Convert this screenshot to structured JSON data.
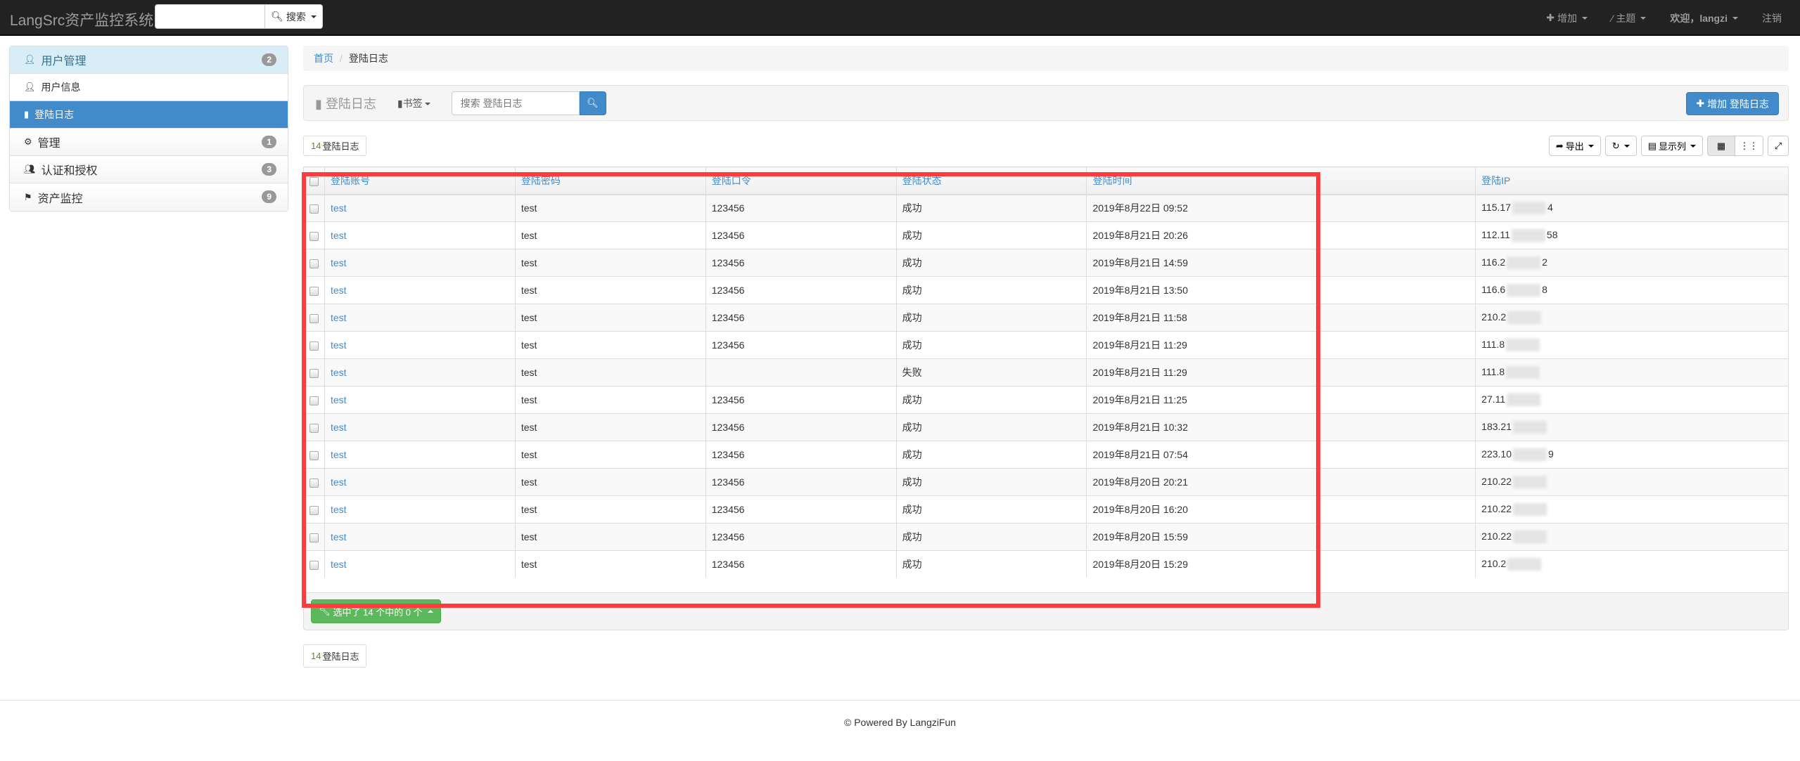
{
  "navbar": {
    "brand": "LangSrc资产监控系统",
    "search_label": "搜索",
    "add_label": "增加",
    "theme_label": "主题",
    "welcome_label": "欢迎，langzi",
    "logout_label": "注销"
  },
  "sidebar": {
    "items": [
      {
        "label": "用户管理",
        "badge": "2",
        "icon": "user-icon",
        "type": "head"
      },
      {
        "label": "用户信息",
        "icon": "user-icon",
        "type": "sub"
      },
      {
        "label": "登陆日志",
        "icon": "book-icon",
        "type": "active"
      },
      {
        "label": "管理",
        "badge": "1",
        "icon": "gear-icon",
        "type": "normal"
      },
      {
        "label": "认证和授权",
        "badge": "3",
        "icon": "users-icon",
        "type": "normal"
      },
      {
        "label": "资产监控",
        "badge": "9",
        "icon": "flag-icon",
        "type": "normal"
      }
    ]
  },
  "breadcrumb": {
    "home": "首页",
    "current": "登陆日志"
  },
  "toolbar": {
    "title": "登陆日志",
    "bookmark_label": "书签",
    "search_placeholder": "搜索 登陆日志",
    "add_label": "增加 登陆日志"
  },
  "count": {
    "number": "14",
    "label": "登陆日志"
  },
  "table_tools": {
    "export_label": "导出",
    "columns_label": "显示列"
  },
  "table": {
    "headers": [
      "登陆账号",
      "登陆密码",
      "登陆口令",
      "登陆状态",
      "登陆时间",
      "登陆IP"
    ],
    "rows": [
      {
        "account": "test",
        "password": "test",
        "token": "123456",
        "status": "成功",
        "time": "2019年8月22日 09:52",
        "ip_prefix": "115.17",
        "ip_suffix": "4"
      },
      {
        "account": "test",
        "password": "test",
        "token": "123456",
        "status": "成功",
        "time": "2019年8月21日 20:26",
        "ip_prefix": "112.11",
        "ip_suffix": "58"
      },
      {
        "account": "test",
        "password": "test",
        "token": "123456",
        "status": "成功",
        "time": "2019年8月21日 14:59",
        "ip_prefix": "116.2",
        "ip_suffix": "2"
      },
      {
        "account": "test",
        "password": "test",
        "token": "123456",
        "status": "成功",
        "time": "2019年8月21日 13:50",
        "ip_prefix": "116.6",
        "ip_suffix": "8"
      },
      {
        "account": "test",
        "password": "test",
        "token": "123456",
        "status": "成功",
        "time": "2019年8月21日 11:58",
        "ip_prefix": "210.2",
        "ip_suffix": ""
      },
      {
        "account": "test",
        "password": "test",
        "token": "123456",
        "status": "成功",
        "time": "2019年8月21日 11:29",
        "ip_prefix": "111.8",
        "ip_suffix": ""
      },
      {
        "account": "test",
        "password": "test",
        "token": "",
        "status": "失败",
        "time": "2019年8月21日 11:29",
        "ip_prefix": "111.8",
        "ip_suffix": ""
      },
      {
        "account": "test",
        "password": "test",
        "token": "123456",
        "status": "成功",
        "time": "2019年8月21日 11:25",
        "ip_prefix": "27.11",
        "ip_suffix": ""
      },
      {
        "account": "test",
        "password": "test",
        "token": "123456",
        "status": "成功",
        "time": "2019年8月21日 10:32",
        "ip_prefix": "183.21",
        "ip_suffix": ""
      },
      {
        "account": "test",
        "password": "test",
        "token": "123456",
        "status": "成功",
        "time": "2019年8月21日 07:54",
        "ip_prefix": "223.10",
        "ip_suffix": "9"
      },
      {
        "account": "test",
        "password": "test",
        "token": "123456",
        "status": "成功",
        "time": "2019年8月20日 20:21",
        "ip_prefix": "210.22",
        "ip_suffix": ""
      },
      {
        "account": "test",
        "password": "test",
        "token": "123456",
        "status": "成功",
        "time": "2019年8月20日 16:20",
        "ip_prefix": "210.22",
        "ip_suffix": ""
      },
      {
        "account": "test",
        "password": "test",
        "token": "123456",
        "status": "成功",
        "time": "2019年8月20日 15:59",
        "ip_prefix": "210.22",
        "ip_suffix": ""
      },
      {
        "account": "test",
        "password": "test",
        "token": "123456",
        "status": "成功",
        "time": "2019年8月20日 15:29",
        "ip_prefix": "210.2",
        "ip_suffix": ""
      }
    ]
  },
  "selection": {
    "label": "选中了 14 个中的 0 个"
  },
  "footer": {
    "prefix": "© Powered By ",
    "link": "LangziFun"
  },
  "colors": {
    "primary": "#428bca",
    "success": "#5cb85c",
    "navbar": "#222222",
    "highlight_box": "#ff3b3b"
  }
}
